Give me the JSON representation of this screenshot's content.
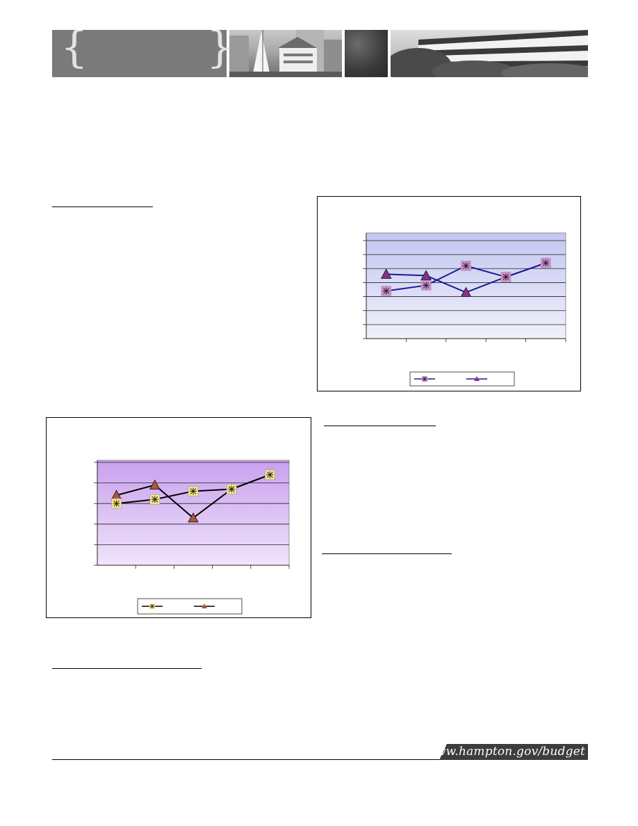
{
  "footer": {
    "url": "www.hampton.gov/budget"
  },
  "chart_data": [
    {
      "type": "line",
      "x": [
        1,
        2,
        3,
        4,
        5
      ],
      "series": [
        {
          "values": [
            3.4,
            3.8,
            5.2,
            4.4,
            5.4
          ],
          "marker": "star",
          "marker_color": "#d48fd4",
          "line_color": "#1a1a8c"
        },
        {
          "values": [
            4.6,
            4.5,
            3.3,
            4.4,
            5.4
          ],
          "marker": "triangle",
          "marker_color": "#8b2f8b",
          "line_color": "#1a1a8c"
        }
      ],
      "ylim": [
        0,
        7
      ],
      "grid": true,
      "plot_background": "#cdd0f3",
      "legend_placement": "bottom"
    },
    {
      "type": "line",
      "x": [
        1,
        2,
        3,
        4,
        5
      ],
      "series": [
        {
          "values": [
            3.0,
            3.2,
            3.6,
            3.7,
            4.4
          ],
          "marker": "star",
          "marker_color": "#f6e58b",
          "line_color": "#000000"
        },
        {
          "values": [
            3.4,
            3.9,
            2.3,
            3.7,
            4.4
          ],
          "marker": "triangle",
          "marker_color": "#b0553c",
          "line_color": "#000000"
        }
      ],
      "ylim": [
        0,
        5
      ],
      "grid": true,
      "plot_background": "#d4b0f0",
      "legend_placement": "bottom"
    }
  ]
}
